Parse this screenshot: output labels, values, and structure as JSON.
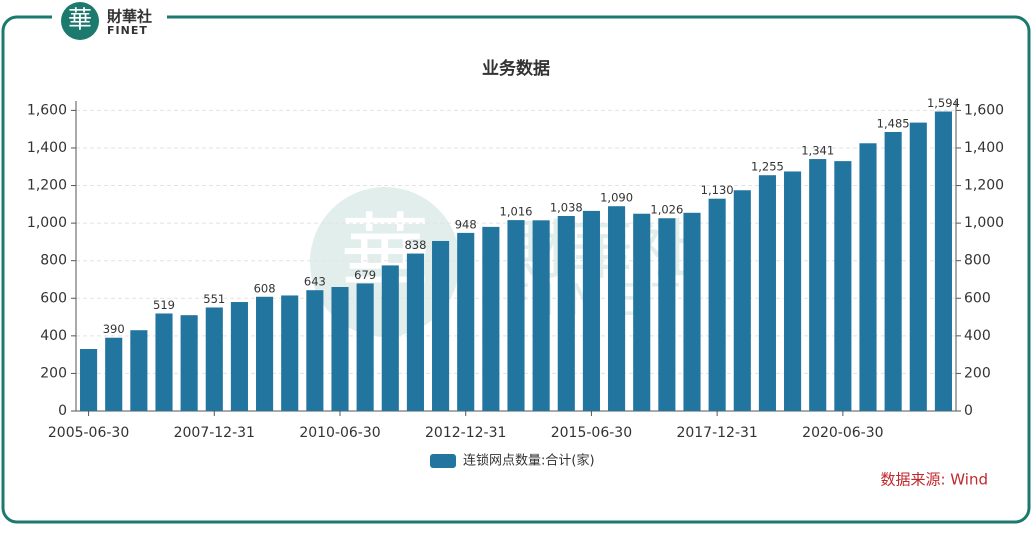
{
  "header": {
    "logo_char": "華",
    "brand": "財華社",
    "brand_en": "FINET"
  },
  "chart_data": {
    "type": "bar",
    "title": "业务数据",
    "categories": [
      "2005-06-30",
      null,
      null,
      null,
      null,
      "2007-12-31",
      null,
      null,
      null,
      null,
      "2010-06-30",
      null,
      null,
      null,
      null,
      "2012-12-31",
      null,
      null,
      null,
      null,
      "2015-06-30",
      null,
      null,
      null,
      null,
      "2017-12-31",
      null,
      null,
      null,
      null,
      "2020-06-30",
      null,
      null,
      null,
      null
    ],
    "series": [
      {
        "name": "连锁网点数量:合计(家)",
        "color": "#22759f",
        "values": [
          330,
          390,
          430,
          519,
          510,
          551,
          580,
          608,
          615,
          643,
          660,
          679,
          775,
          838,
          905,
          948,
          980,
          1016,
          1015,
          1038,
          1065,
          1090,
          1050,
          1026,
          1055,
          1130,
          1175,
          1255,
          1275,
          1341,
          1330,
          1425,
          1485,
          1535,
          1594
        ],
        "value_labels": [
          null,
          "390",
          null,
          "519",
          null,
          "551",
          null,
          "608",
          null,
          "643",
          null,
          "679",
          null,
          "838",
          null,
          "948",
          null,
          "1,016",
          null,
          "1,038",
          null,
          "1,090",
          null,
          "1,026",
          null,
          "1,130",
          null,
          "1,255",
          null,
          "1,341",
          null,
          null,
          "1,485",
          null,
          "1,594"
        ]
      }
    ],
    "ylim": [
      0,
      1650
    ],
    "yticks": [
      0,
      200,
      400,
      600,
      800,
      {
        "value": 1000,
        "label": "1,000"
      },
      {
        "value": 1200,
        "label": "1,200"
      },
      {
        "value": 1400,
        "label": "1,400"
      },
      {
        "value": 1600,
        "label": "1,600"
      }
    ],
    "y2lim": [
      0,
      1650
    ],
    "y2ticks": [
      0,
      200,
      400,
      600,
      800,
      {
        "value": 1000,
        "label": "1,000"
      },
      {
        "value": 1200,
        "label": "1,200"
      },
      {
        "value": 1400,
        "label": "1,400"
      },
      {
        "value": 1600,
        "label": "1,600"
      }
    ],
    "grid": true,
    "legend": "bottom",
    "source": "数据来源: Wind"
  }
}
